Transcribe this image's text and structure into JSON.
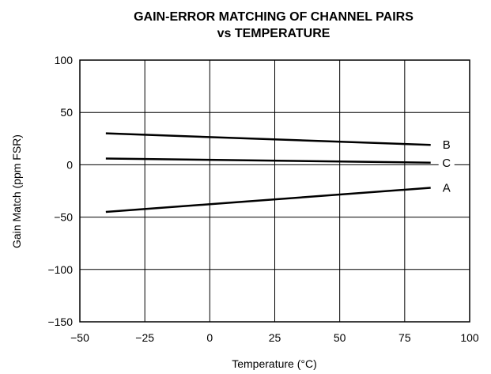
{
  "chart_data": {
    "type": "line",
    "title": [
      "GAIN-ERROR MATCHING OF CHANNEL PAIRS",
      "vs TEMPERATURE"
    ],
    "xlabel": "Temperature (°C)",
    "ylabel": "Gain Match (ppm FSR)",
    "xlim": [
      -50,
      100
    ],
    "ylim": [
      -150,
      100
    ],
    "xticks": [
      -50,
      -25,
      0,
      25,
      50,
      75,
      100
    ],
    "xtick_labels": [
      "−50",
      "−25",
      "0",
      "25",
      "50",
      "75",
      "100"
    ],
    "yticks": [
      -150,
      -100,
      -50,
      0,
      50,
      100
    ],
    "ytick_labels": [
      "−150",
      "−100",
      "−50",
      "0",
      "50",
      "100"
    ],
    "grid": true,
    "legend": "none (series labeled at right end of lines)",
    "series": [
      {
        "name": "B",
        "x": [
          -40,
          85
        ],
        "y": [
          30,
          19
        ]
      },
      {
        "name": "C",
        "x": [
          -40,
          85
        ],
        "y": [
          6,
          2
        ]
      },
      {
        "name": "A",
        "x": [
          -40,
          85
        ],
        "y": [
          -45,
          -22
        ]
      }
    ],
    "colors": {
      "line": "#000000",
      "grid": "#000000",
      "background": "#ffffff"
    }
  }
}
